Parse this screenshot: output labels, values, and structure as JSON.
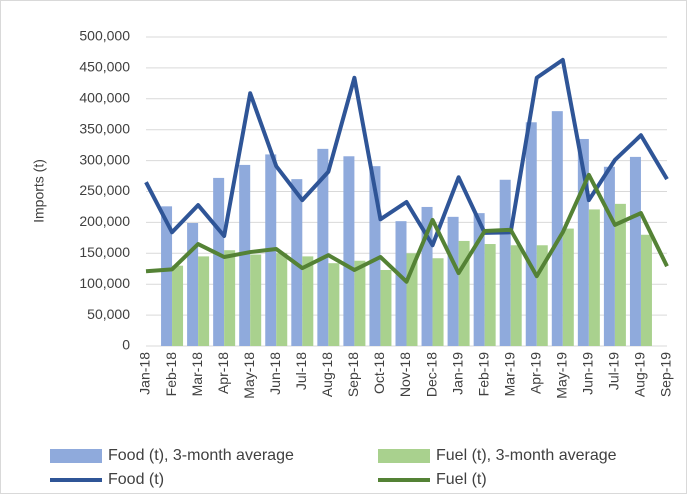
{
  "chart_data": {
    "type": "combo",
    "y_label": "Imports (t)",
    "categories": [
      "Jan-18",
      "Feb-18",
      "Mar-18",
      "Apr-18",
      "May-18",
      "Jun-18",
      "Jul-18",
      "Aug-18",
      "Sep-18",
      "Oct-18",
      "Nov-18",
      "Dec-18",
      "Jan-19",
      "Feb-19",
      "Mar-19",
      "Apr-19",
      "May-19",
      "Jun-19",
      "Jul-19",
      "Aug-19",
      "Sep-19"
    ],
    "series": [
      {
        "name": "Food (t), 3-month average",
        "type": "bar",
        "color": "#8faadc",
        "values": [
          null,
          226000,
          199000,
          272000,
          293000,
          310000,
          270000,
          319000,
          307000,
          291000,
          202000,
          225000,
          209000,
          215000,
          269000,
          362000,
          380000,
          335000,
          290000,
          306000,
          null
        ]
      },
      {
        "name": "Fuel (t), 3-month average",
        "type": "bar",
        "color": "#a9d18e",
        "values": [
          null,
          130000,
          145000,
          155000,
          148000,
          150000,
          145000,
          134000,
          138000,
          123000,
          150000,
          142000,
          170000,
          165000,
          163000,
          163000,
          190000,
          221000,
          230000,
          180000,
          null
        ]
      },
      {
        "name": "Food (t)",
        "type": "line",
        "color": "#2f5597",
        "values": [
          265000,
          184000,
          228000,
          178000,
          409000,
          291000,
          236000,
          282000,
          434000,
          205000,
          233000,
          163000,
          273000,
          183000,
          184000,
          434000,
          463000,
          236000,
          301000,
          341000,
          270000
        ]
      },
      {
        "name": "Fuel (t)",
        "type": "line",
        "color": "#548235",
        "values": [
          121000,
          124000,
          165000,
          144000,
          152000,
          157000,
          126000,
          147000,
          123000,
          144000,
          104000,
          204000,
          118000,
          186000,
          188000,
          113000,
          184000,
          277000,
          196000,
          215000,
          129000
        ]
      }
    ],
    "ylim": [
      0,
      500000
    ],
    "yticks": [
      0,
      {
        "value": 50000,
        "label": "50,000"
      },
      {
        "value": 100000,
        "label": "100,000"
      },
      {
        "value": 150000,
        "label": "150,000"
      },
      {
        "value": 200000,
        "label": "200,000"
      },
      {
        "value": 250000,
        "label": "250,000"
      },
      {
        "value": 300000,
        "label": "300,000"
      },
      {
        "value": 350000,
        "label": "350,000"
      },
      {
        "value": 400000,
        "label": "400,000"
      },
      {
        "value": 450000,
        "label": "450,000"
      },
      {
        "value": 500000,
        "label": "500,000"
      }
    ],
    "grid": true,
    "legend": "bottom"
  }
}
